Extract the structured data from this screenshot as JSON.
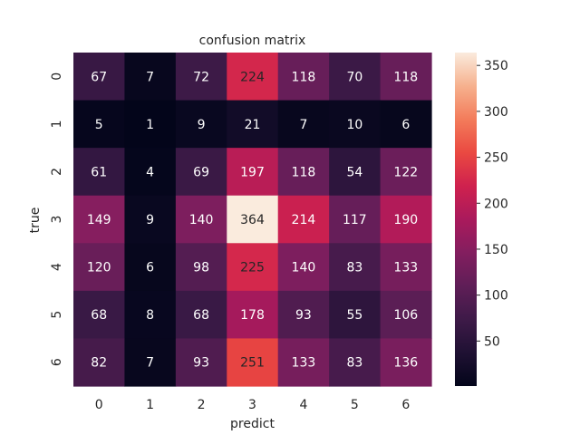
{
  "chart_data": {
    "type": "heatmap",
    "title": "confusion matrix",
    "xlabel": "predict",
    "ylabel": "true",
    "x_categories": [
      "0",
      "1",
      "2",
      "3",
      "4",
      "5",
      "6"
    ],
    "y_categories": [
      "0",
      "1",
      "2",
      "3",
      "4",
      "5",
      "6"
    ],
    "values": [
      [
        67,
        7,
        72,
        224,
        118,
        70,
        118
      ],
      [
        5,
        1,
        9,
        21,
        7,
        10,
        6
      ],
      [
        61,
        4,
        69,
        197,
        118,
        54,
        122
      ],
      [
        149,
        9,
        140,
        364,
        214,
        117,
        190
      ],
      [
        120,
        6,
        98,
        225,
        140,
        83,
        133
      ],
      [
        68,
        8,
        68,
        178,
        93,
        55,
        106
      ],
      [
        82,
        7,
        93,
        251,
        133,
        83,
        136
      ]
    ],
    "colorbar": {
      "min": 1,
      "max": 364,
      "ticks": [
        50,
        100,
        150,
        200,
        250,
        300,
        350
      ],
      "colormap": "rocket"
    },
    "grid": false
  }
}
